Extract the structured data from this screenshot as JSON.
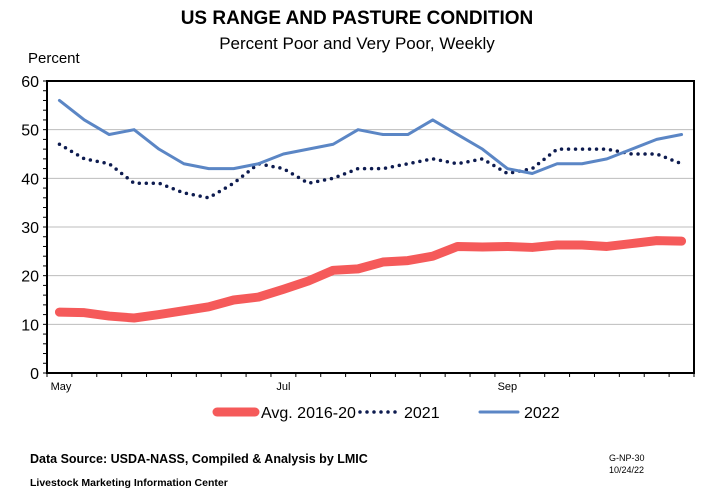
{
  "chart_data": {
    "type": "line",
    "title": "US RANGE AND PASTURE CONDITION",
    "subtitle": "Percent Poor and Very Poor, Weekly",
    "ylabel": "Percent",
    "xlabel": "",
    "ylim": [
      0,
      60
    ],
    "yticks": [
      0,
      10,
      20,
      30,
      40,
      50,
      60
    ],
    "x_tick_labels": [
      {
        "label": "May",
        "index": 0
      },
      {
        "label": "Jul",
        "index": 9
      },
      {
        "label": "Sep",
        "index": 18
      }
    ],
    "grid": true,
    "legend": "bottom",
    "series": [
      {
        "name": "Avg. 2016-20",
        "color": "#f55a5a",
        "style": "thick-solid",
        "values": [
          12.5,
          12.4,
          11.7,
          11.3,
          12.0,
          12.8,
          13.6,
          15.0,
          15.6,
          17.2,
          18.9,
          21.1,
          21.4,
          22.8,
          23.1,
          24.0,
          26.0,
          25.9,
          26.0,
          25.8,
          26.3,
          26.3,
          26.0,
          26.6,
          27.2,
          27.1
        ]
      },
      {
        "name": "2021",
        "color": "#0d1b4f",
        "style": "dotted",
        "values": [
          47,
          44,
          43,
          39,
          39,
          37,
          36,
          39,
          43,
          42,
          39,
          40,
          42,
          42,
          43,
          44,
          43,
          44,
          41,
          42,
          46,
          46,
          46,
          45,
          45,
          43
        ]
      },
      {
        "name": "2022",
        "color": "#5b86c5",
        "style": "solid",
        "values": [
          56,
          52,
          49,
          50,
          46,
          43,
          42,
          42,
          43,
          45,
          46,
          47,
          50,
          49,
          49,
          52,
          49,
          46,
          42,
          41,
          43,
          43,
          44,
          46,
          48,
          49
        ]
      }
    ]
  },
  "footer": {
    "source": "Data Source:  USDA-NASS, Compiled & Analysis by LMIC",
    "org": "Livestock Marketing Information Center",
    "code": "G-NP-30",
    "date": "10/24/22"
  }
}
